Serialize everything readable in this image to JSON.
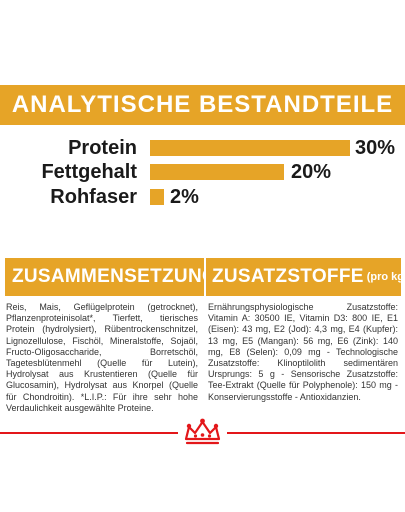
{
  "analysis": {
    "title": "ANALYTISCHE BESTANDTEILE",
    "rows": [
      {
        "label": "Protein",
        "value": "30%",
        "fraction": 1.0
      },
      {
        "label": "Fettgehalt",
        "value": "20%",
        "fraction": 0.667
      },
      {
        "label": "Rohfaser",
        "value": "2%",
        "fraction": 0.067
      }
    ]
  },
  "composition": {
    "heading": "ZUSAMMENSETZUNG",
    "text": "Reis, Mais, Geflügelprotein (getrocknet), Pflanzenproteinisolat*, Tierfett, tierisches Protein (hydrolysiert), Rübentrockenschnitzel, Lignozellulose, Fischöl, Mineralstoffe, Sojaöl, Fructo-Oligosaccharide, Borretschöl, Tagetesblütenmehl (Quelle für Lutein), Hydrolysat aus Krustentieren (Quelle für Glucosamin), Hydrolysat aus Knorpel (Quelle für Chondroitin). *L.I.P.: Für ihre sehr hohe Verdaulichkeit ausgewählte Proteine."
  },
  "additives": {
    "heading": "ZUSATZSTOFFE",
    "unit": "(pro kg)",
    "text": "Ernährungsphysiologische Zusatzstoffe: Vitamin A: 30500 IE, Vitamin D3: 800 IE, E1 (Eisen): 43 mg, E2 (Jod): 4,3 mg, E4 (Kupfer): 13 mg, E5 (Mangan): 56 mg, E6 (Zink): 140 mg, E8 (Selen): 0,09 mg - Technologische Zusatzstoffe: Klinoptilolith sedimentären Ursprungs: 5 g - Sensorische Zusatzstoffe: Tee-Extrakt (Quelle für Polyphenole): 150 mg - Konservierungsstoffe - Antioxidanzien."
  },
  "brand": {
    "logo_icon": "royal-canin-crown-icon",
    "accent": "#e6a427",
    "red": "#e3171a"
  }
}
